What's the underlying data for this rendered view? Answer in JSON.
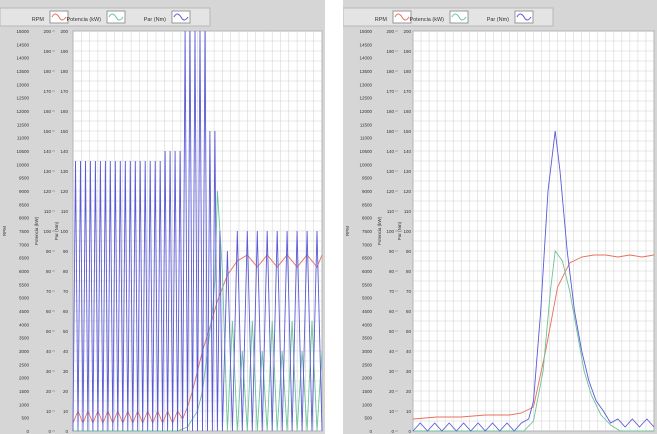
{
  "colors": {
    "rpm": "#e8705a",
    "potencia": "#6cc49a",
    "par": "#5a5ad8",
    "grid": "#cfcfcf",
    "panel": "#d6d6d6",
    "plot_bg": "#ffffff"
  },
  "legend": [
    {
      "label": "RPM",
      "color_key": "rpm"
    },
    {
      "label": "Potencia (kW)",
      "color_key": "potencia"
    },
    {
      "label": "Par (Nm)",
      "color_key": "par"
    }
  ],
  "axes": {
    "rpm": {
      "label": "RPM",
      "min": 0,
      "max": 15000,
      "ticks": [
        0,
        500,
        1000,
        1500,
        2000,
        2500,
        3000,
        3500,
        4000,
        4500,
        5000,
        5500,
        6000,
        6500,
        7000,
        7500,
        8000,
        8500,
        9000,
        9500,
        10000,
        10500,
        11000,
        11500,
        12000,
        12500,
        13000,
        13500,
        14000,
        14500,
        15000
      ]
    },
    "potencia": {
      "label": "Potencia (kW)",
      "min": 0,
      "max": 200,
      "ticks": [
        0,
        10,
        20,
        30,
        40,
        50,
        60,
        70,
        80,
        90,
        100,
        110,
        120,
        130,
        140,
        150,
        160,
        170,
        180,
        190,
        200
      ]
    },
    "par": {
      "label": "Par (Nm)",
      "min": 0,
      "max": 200,
      "ticks": [
        0,
        10,
        20,
        30,
        40,
        50,
        60,
        70,
        80,
        90,
        100,
        110,
        120,
        130,
        140,
        150,
        160,
        170,
        180,
        190,
        200
      ]
    }
  },
  "chart_data": [
    {
      "type": "line",
      "name": "chart-left",
      "grid": true,
      "legend_position": "top",
      "xlim": [
        0,
        100
      ],
      "ylim": [
        0,
        200
      ],
      "series": [
        {
          "name": "RPM",
          "color_key": "rpm",
          "x": [
            0,
            2,
            4,
            6,
            8,
            10,
            12,
            14,
            16,
            18,
            20,
            22,
            24,
            26,
            28,
            30,
            32,
            34,
            36,
            38,
            40,
            42,
            44,
            46,
            48,
            50,
            52,
            55,
            58,
            62,
            66,
            70,
            74,
            78,
            82,
            86,
            90,
            94,
            98,
            100
          ],
          "y": [
            4,
            10,
            4,
            10,
            4,
            10,
            4,
            10,
            4,
            10,
            4,
            10,
            4,
            10,
            4,
            10,
            4,
            10,
            4,
            10,
            4,
            10,
            6,
            12,
            20,
            30,
            40,
            52,
            65,
            78,
            85,
            88,
            82,
            88,
            82,
            88,
            82,
            88,
            82,
            88
          ]
        },
        {
          "name": "Potencia (kW)",
          "color_key": "potencia",
          "x": [
            0,
            42,
            46,
            50,
            52,
            54,
            56,
            57,
            58,
            60,
            62,
            64,
            66,
            68,
            70,
            72,
            74,
            76,
            78,
            80,
            82,
            84,
            86,
            88,
            90,
            92,
            94,
            96,
            98,
            100
          ],
          "y": [
            0,
            0,
            2,
            10,
            20,
            40,
            60,
            75,
            120,
            80,
            0,
            55,
            0,
            40,
            0,
            55,
            0,
            40,
            0,
            55,
            0,
            40,
            0,
            55,
            0,
            40,
            0,
            55,
            0,
            40
          ]
        },
        {
          "name": "Par (Nm)",
          "color_key": "par",
          "x": [
            0,
            1,
            2,
            3,
            4,
            5,
            6,
            7,
            8,
            9,
            10,
            11,
            12,
            13,
            14,
            15,
            16,
            17,
            18,
            19,
            20,
            21,
            22,
            23,
            24,
            25,
            26,
            27,
            28,
            29,
            30,
            31,
            32,
            33,
            34,
            35,
            36,
            37,
            38,
            39,
            40,
            41,
            42,
            43,
            44,
            45,
            46,
            47,
            48,
            49,
            50,
            51,
            52,
            53,
            54,
            55,
            56,
            57,
            58,
            59,
            60,
            62,
            64,
            66,
            68,
            70,
            72,
            74,
            76,
            78,
            80,
            82,
            84,
            86,
            88,
            90,
            92,
            94,
            96,
            98,
            100
          ],
          "y": [
            0,
            135,
            0,
            135,
            0,
            135,
            0,
            135,
            0,
            135,
            0,
            135,
            0,
            135,
            0,
            135,
            0,
            135,
            0,
            135,
            0,
            135,
            0,
            135,
            0,
            135,
            0,
            135,
            0,
            135,
            0,
            135,
            0,
            135,
            0,
            135,
            0,
            140,
            0,
            140,
            0,
            140,
            0,
            140,
            0,
            200,
            0,
            200,
            0,
            200,
            0,
            200,
            0,
            200,
            0,
            150,
            0,
            150,
            0,
            100,
            0,
            90,
            0,
            100,
            0,
            100,
            0,
            100,
            0,
            100,
            0,
            100,
            0,
            100,
            0,
            100,
            0,
            100,
            0,
            100,
            0
          ]
        }
      ]
    },
    {
      "type": "line",
      "name": "chart-right",
      "grid": true,
      "legend_position": "top",
      "xlim": [
        0,
        100
      ],
      "ylim": [
        0,
        200
      ],
      "series": [
        {
          "name": "RPM",
          "color_key": "rpm",
          "x": [
            0,
            10,
            20,
            30,
            40,
            45,
            50,
            55,
            60,
            65,
            70,
            75,
            80,
            85,
            90,
            95,
            100
          ],
          "y": [
            6,
            7,
            7,
            8,
            8,
            9,
            12,
            40,
            72,
            84,
            87,
            88,
            88,
            87,
            88,
            87,
            88
          ]
        },
        {
          "name": "Potencia (kW)",
          "color_key": "potencia",
          "x": [
            0,
            10,
            20,
            30,
            40,
            46,
            50,
            54,
            57,
            59,
            62,
            65,
            68,
            71,
            74,
            78,
            82,
            86,
            90,
            95,
            100
          ],
          "y": [
            0,
            0,
            0,
            0,
            0,
            0,
            5,
            30,
            70,
            90,
            85,
            70,
            50,
            30,
            18,
            8,
            3,
            0,
            0,
            0,
            0
          ]
        },
        {
          "name": "Par (Nm)",
          "color_key": "par",
          "x": [
            0,
            3,
            6,
            9,
            12,
            15,
            18,
            21,
            24,
            27,
            30,
            33,
            36,
            39,
            42,
            45,
            48,
            50,
            53,
            56,
            59,
            61,
            64,
            67,
            70,
            73,
            76,
            79,
            82,
            85,
            88,
            91,
            94,
            97,
            100
          ],
          "y": [
            0,
            4,
            0,
            4,
            0,
            4,
            0,
            4,
            0,
            4,
            0,
            4,
            0,
            4,
            0,
            4,
            6,
            15,
            60,
            120,
            150,
            130,
            90,
            60,
            40,
            25,
            15,
            10,
            4,
            6,
            2,
            6,
            2,
            6,
            2
          ]
        }
      ]
    }
  ]
}
